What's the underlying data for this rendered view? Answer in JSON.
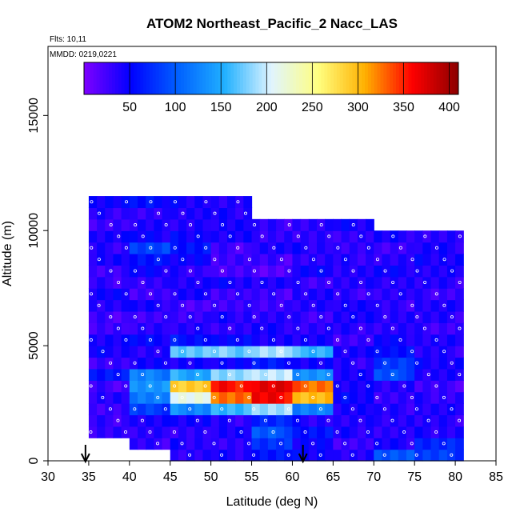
{
  "chart_data": {
    "type": "heatmap",
    "title": "ATOM2 Northeast_Pacific_2 Nacc_LAS",
    "annotations": {
      "flights": "Flts: 10,11",
      "dates": "MMDD: 0219,0221"
    },
    "xlabel": "Latitude (deg N)",
    "ylabel": "Altitude (m)",
    "xlim": [
      30,
      85
    ],
    "ylim": [
      0,
      18000
    ],
    "xticks": [
      "30",
      "35",
      "40",
      "45",
      "50",
      "55",
      "60",
      "65",
      "70",
      "75",
      "80",
      "85"
    ],
    "xtick_values": [
      30,
      35,
      40,
      45,
      50,
      55,
      60,
      65,
      70,
      75,
      80,
      85
    ],
    "yticks": [
      "0",
      "5000",
      "10000",
      "15000"
    ],
    "ytick_values": [
      0,
      5000,
      10000,
      15000
    ],
    "colorbar": {
      "range": [
        0,
        410
      ],
      "ticks": [
        "50",
        "100",
        "150",
        "200",
        "250",
        "300",
        "350",
        "400"
      ],
      "tick_values": [
        50,
        100,
        150,
        200,
        250,
        300,
        350,
        400
      ],
      "colors": [
        "#7f00ff",
        "#0000ff",
        "#0060ff",
        "#20b0ff",
        "#e0f4ff",
        "#ffff80",
        "#ffb000",
        "#ff0000",
        "#8b0000"
      ]
    },
    "arrows_latitude": [
      34.6,
      61.3
    ],
    "cell_size": {
      "dlat": 1,
      "dalt": 500
    },
    "columns": [
      {
        "lat_start": 35,
        "lat_end": 40,
        "alt_min": 1000,
        "alt_max": 11500,
        "values": [
          35,
          30,
          25,
          40,
          25,
          60,
          30,
          45,
          40,
          30,
          25,
          35,
          50,
          30,
          25,
          45,
          35,
          40,
          30,
          35,
          45
        ]
      },
      {
        "lat_start": 40,
        "lat_end": 45,
        "alt_min": 500,
        "alt_max": 11500,
        "values": [
          30,
          35,
          45,
          80,
          120,
          140,
          120,
          45,
          40,
          50,
          35,
          30,
          40,
          25,
          35,
          45,
          60,
          90,
          45,
          40,
          35,
          55
        ]
      },
      {
        "lat_start": 45,
        "lat_end": 50,
        "alt_min": 0,
        "alt_max": 11500,
        "values": [
          35,
          40,
          30,
          45,
          130,
          210,
          290,
          150,
          40,
          170,
          60,
          35,
          30,
          25,
          40,
          40,
          35,
          45,
          60,
          50,
          35,
          40,
          45
        ]
      },
      {
        "lat_start": 50,
        "lat_end": 55,
        "alt_min": 0,
        "alt_max": 11500,
        "values": [
          40,
          30,
          45,
          35,
          155,
          330,
          355,
          180,
          50,
          175,
          50,
          35,
          40,
          25,
          30,
          45,
          20,
          30,
          25,
          40,
          45,
          40,
          35
        ]
      },
      {
        "lat_start": 55,
        "lat_end": 60,
        "alt_min": 0,
        "alt_max": 10500,
        "values": [
          60,
          80,
          95,
          70,
          190,
          360,
          370,
          200,
          60,
          190,
          45,
          40,
          35,
          30,
          25,
          40,
          20,
          25,
          40,
          35,
          30
        ]
      },
      {
        "lat_start": 60,
        "lat_end": 65,
        "alt_min": 0,
        "alt_max": 10500,
        "values": [
          50,
          45,
          60,
          40,
          120,
          300,
          330,
          130,
          45,
          160,
          40,
          35,
          30,
          35,
          40,
          30,
          45,
          35,
          40,
          30,
          35
        ]
      },
      {
        "lat_start": 65,
        "lat_end": 70,
        "alt_min": 0,
        "alt_max": 10500,
        "values": [
          35,
          30,
          40,
          35,
          45,
          50,
          40,
          45,
          35,
          40,
          30,
          35,
          40,
          45,
          30,
          35,
          40,
          35,
          30,
          35,
          45
        ]
      },
      {
        "lat_start": 70,
        "lat_end": 75,
        "alt_min": 0,
        "alt_max": 10000,
        "values": [
          100,
          40,
          35,
          40,
          35,
          30,
          40,
          90,
          80,
          60,
          45,
          35,
          40,
          30,
          35,
          40,
          45,
          35,
          30,
          40
        ]
      },
      {
        "lat_start": 75,
        "lat_end": 81,
        "alt_min": 0,
        "alt_max": 10000,
        "values": [
          80,
          70,
          40,
          35,
          40,
          35,
          25,
          40,
          45,
          35,
          40,
          30,
          35,
          40,
          30,
          35,
          40,
          45,
          40,
          35
        ]
      }
    ]
  }
}
